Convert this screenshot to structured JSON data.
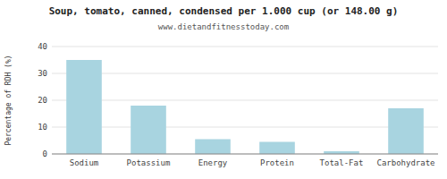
{
  "chart_data": {
    "type": "bar",
    "title": "Soup, tomato, canned, condensed per 1.000 cup (or 148.00 g)",
    "subtitle": "www.dietandfitnesstoday.com",
    "categories": [
      "Sodium",
      "Potassium",
      "Energy",
      "Protein",
      "Total-Fat",
      "Carbohydrate"
    ],
    "values": [
      35.0,
      18.0,
      5.5,
      4.5,
      1.0,
      17.0
    ],
    "color": "#a8d4e0",
    "ylabel": "Percentage of RDH (%)",
    "ylim": [
      0,
      40
    ],
    "yticks": [
      0,
      10,
      20,
      30,
      40
    ],
    "grid": true
  }
}
